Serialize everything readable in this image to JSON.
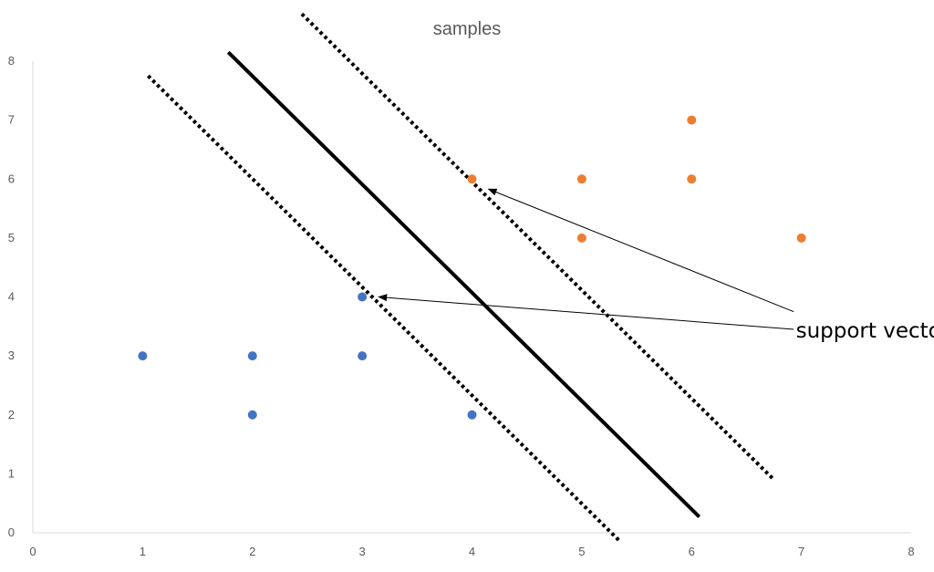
{
  "chart_data": {
    "type": "scatter",
    "title": "samples",
    "xlabel": "",
    "ylabel": "",
    "xlim": [
      0,
      8
    ],
    "ylim": [
      0,
      8
    ],
    "x_ticks": [
      0,
      1,
      2,
      3,
      4,
      5,
      6,
      7,
      8
    ],
    "y_ticks": [
      0,
      1,
      2,
      3,
      4,
      5,
      6,
      7,
      8
    ],
    "grid": false,
    "legend": "none",
    "series": [
      {
        "color": "#4472C4",
        "points": [
          {
            "x": 1,
            "y": 3
          },
          {
            "x": 2,
            "y": 3
          },
          {
            "x": 2,
            "y": 2
          },
          {
            "x": 3,
            "y": 4
          },
          {
            "x": 3,
            "y": 3
          },
          {
            "x": 4,
            "y": 2
          }
        ]
      },
      {
        "color": "#ED7D31",
        "points": [
          {
            "x": 4,
            "y": 6
          },
          {
            "x": 5,
            "y": 6
          },
          {
            "x": 5,
            "y": 5
          },
          {
            "x": 6,
            "y": 7
          },
          {
            "x": 6,
            "y": 6
          },
          {
            "x": 7,
            "y": 5
          }
        ]
      }
    ],
    "lines": [
      {
        "role": "margin-lower",
        "style": "dotted",
        "from": {
          "x": 1.05,
          "y": 7.75
        },
        "to": {
          "x": 5.35,
          "y": -0.15
        }
      },
      {
        "role": "hyperplane",
        "style": "solid",
        "from": {
          "x": 1.78,
          "y": 8.15
        },
        "to": {
          "x": 6.07,
          "y": 0.27
        }
      },
      {
        "role": "margin-upper",
        "style": "dotted",
        "from": {
          "x": 2.45,
          "y": 8.8
        },
        "to": {
          "x": 6.75,
          "y": 0.9
        }
      }
    ],
    "annotations": [
      {
        "text": "support vectors",
        "anchor": {
          "x": 6.95,
          "y": 3.45
        },
        "arrows": [
          {
            "from": {
              "x": 6.93,
              "y": 3.75
            },
            "to": {
              "x": 4.15,
              "y": 5.83
            }
          },
          {
            "from": {
              "x": 6.93,
              "y": 3.45
            },
            "to": {
              "x": 3.15,
              "y": 4.0
            }
          }
        ]
      }
    ]
  }
}
